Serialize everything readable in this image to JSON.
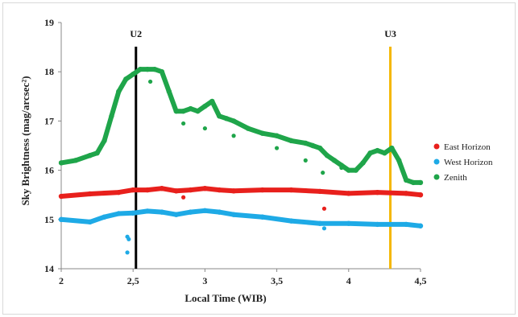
{
  "chart_data": {
    "type": "scatter",
    "title": "",
    "xlabel": "Local Time (WIB)",
    "ylabel": "Sky Brightness (mag/arcsec²)",
    "xlim": [
      2,
      4.5
    ],
    "ylim": [
      14,
      19
    ],
    "x_ticks": [
      "2",
      "2,5",
      "3",
      "3,5",
      "4",
      "4,5"
    ],
    "y_ticks": [
      "14",
      "15",
      "16",
      "17",
      "18",
      "19"
    ],
    "legend_position": "right",
    "markers": [
      {
        "label": "U2",
        "x": 2.52,
        "color": "#000000"
      },
      {
        "label": "U3",
        "x": 4.29,
        "color": "#f5b700"
      }
    ],
    "series": [
      {
        "name": "East Horizon",
        "color": "#e8201c",
        "x": [
          2.0,
          2.2,
          2.4,
          2.5,
          2.6,
          2.7,
          2.8,
          2.9,
          3.0,
          3.1,
          3.2,
          3.4,
          3.6,
          3.8,
          4.0,
          4.2,
          4.4,
          4.5
        ],
        "y": [
          15.47,
          15.52,
          15.55,
          15.6,
          15.6,
          15.63,
          15.58,
          15.6,
          15.63,
          15.6,
          15.58,
          15.6,
          15.6,
          15.57,
          15.53,
          15.55,
          15.53,
          15.5
        ],
        "outliers": [
          {
            "x": 3.83,
            "y": 15.22
          },
          {
            "x": 2.85,
            "y": 15.45
          }
        ]
      },
      {
        "name": "West Horizon",
        "color": "#1eaae6",
        "x": [
          2.0,
          2.2,
          2.3,
          2.4,
          2.5,
          2.6,
          2.7,
          2.8,
          2.9,
          3.0,
          3.1,
          3.2,
          3.4,
          3.6,
          3.8,
          4.0,
          4.2,
          4.4,
          4.5
        ],
        "y": [
          15.0,
          14.95,
          15.05,
          15.12,
          15.13,
          15.17,
          15.15,
          15.1,
          15.15,
          15.18,
          15.15,
          15.1,
          15.05,
          14.97,
          14.92,
          14.92,
          14.9,
          14.9,
          14.87
        ],
        "outliers": [
          {
            "x": 2.46,
            "y": 14.65
          },
          {
            "x": 2.47,
            "y": 14.6
          },
          {
            "x": 2.46,
            "y": 14.33
          },
          {
            "x": 3.83,
            "y": 14.82
          }
        ]
      },
      {
        "name": "Zenith",
        "color": "#1fa54a",
        "x": [
          2.0,
          2.1,
          2.2,
          2.25,
          2.3,
          2.35,
          2.4,
          2.45,
          2.5,
          2.55,
          2.6,
          2.65,
          2.7,
          2.75,
          2.8,
          2.85,
          2.9,
          2.95,
          3.0,
          3.05,
          3.1,
          3.15,
          3.2,
          3.3,
          3.4,
          3.5,
          3.6,
          3.7,
          3.75,
          3.8,
          3.85,
          3.9,
          3.95,
          4.0,
          4.05,
          4.1,
          4.15,
          4.2,
          4.25,
          4.3,
          4.35,
          4.4,
          4.45,
          4.5
        ],
        "y": [
          16.15,
          16.2,
          16.3,
          16.35,
          16.6,
          17.1,
          17.6,
          17.85,
          17.95,
          18.05,
          18.05,
          18.05,
          18.0,
          17.6,
          17.2,
          17.2,
          17.25,
          17.2,
          17.3,
          17.4,
          17.1,
          17.05,
          17.0,
          16.85,
          16.75,
          16.7,
          16.6,
          16.55,
          16.5,
          16.45,
          16.3,
          16.2,
          16.1,
          16.0,
          16.0,
          16.15,
          16.35,
          16.4,
          16.35,
          16.45,
          16.2,
          15.8,
          15.75,
          15.75
        ],
        "outliers": [
          {
            "x": 2.62,
            "y": 17.8
          },
          {
            "x": 2.85,
            "y": 16.95
          },
          {
            "x": 3.0,
            "y": 16.85
          },
          {
            "x": 3.2,
            "y": 16.7
          },
          {
            "x": 3.5,
            "y": 16.45
          },
          {
            "x": 3.7,
            "y": 16.2
          },
          {
            "x": 3.82,
            "y": 15.95
          },
          {
            "x": 3.95,
            "y": 16.05
          }
        ]
      }
    ]
  }
}
